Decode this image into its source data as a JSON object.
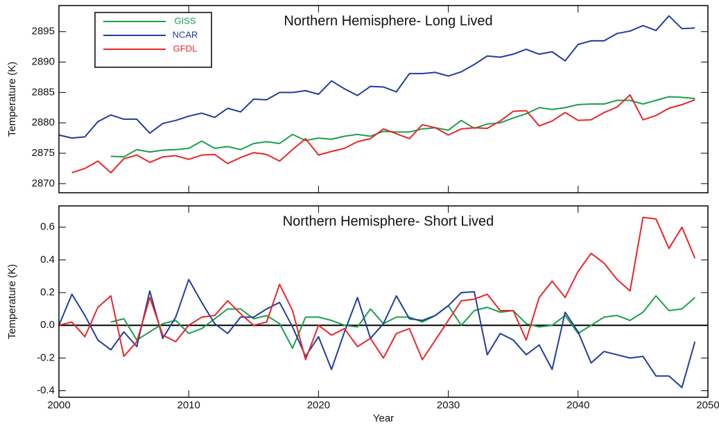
{
  "chart_data": [
    {
      "type": "line",
      "title": "Northern Hemisphere- Long Lived",
      "ylabel": "Temperature (K)",
      "x": [
        2000,
        2001,
        2002,
        2003,
        2004,
        2005,
        2006,
        2007,
        2008,
        2009,
        2010,
        2011,
        2012,
        2013,
        2014,
        2015,
        2016,
        2017,
        2018,
        2019,
        2020,
        2021,
        2022,
        2023,
        2024,
        2025,
        2026,
        2027,
        2028,
        2029,
        2030,
        2031,
        2032,
        2033,
        2034,
        2035,
        2036,
        2037,
        2038,
        2039,
        2040,
        2041,
        2042,
        2043,
        2044,
        2045,
        2046,
        2047,
        2048,
        2049
      ],
      "xlim": [
        2000,
        2050
      ],
      "ylim": [
        2868.5,
        2899.3
      ],
      "yticks": [
        2870,
        2875,
        2880,
        2885,
        2890,
        2895
      ],
      "legend": "upper left",
      "series": [
        {
          "name": "GISS",
          "color": "#1aa04a",
          "values": [
            null,
            null,
            null,
            null,
            2874.5,
            2874.4,
            2875.6,
            2875.2,
            2875.5,
            2875.6,
            2875.8,
            2877.0,
            2875.8,
            2876.1,
            2875.6,
            2876.6,
            2876.9,
            2876.6,
            2878.1,
            2877.1,
            2877.5,
            2877.3,
            2877.8,
            2878.1,
            2877.8,
            2878.6,
            2878.5,
            2878.5,
            2879.0,
            2879.2,
            2878.8,
            2880.4,
            2879.1,
            2879.8,
            2880.0,
            2880.8,
            2881.5,
            2882.5,
            2882.2,
            2882.5,
            2883.0,
            2883.1,
            2883.1,
            2883.7,
            2883.7,
            2883.1,
            2883.7,
            2884.3,
            2884.2,
            2884.0
          ]
        },
        {
          "name": "NCAR",
          "color": "#1f3e9b",
          "values": [
            2878.0,
            2877.5,
            2877.7,
            2880.2,
            2881.3,
            2880.6,
            2880.6,
            2878.3,
            2879.9,
            2880.4,
            2881.1,
            2881.6,
            2880.9,
            2882.4,
            2881.8,
            2883.9,
            2883.8,
            2885.0,
            2885.0,
            2885.3,
            2884.7,
            2886.9,
            2885.6,
            2884.5,
            2886.0,
            2885.9,
            2885.1,
            2888.1,
            2888.1,
            2888.3,
            2887.7,
            2888.4,
            2889.6,
            2891.0,
            2890.8,
            2891.3,
            2892.1,
            2891.3,
            2891.7,
            2890.2,
            2892.9,
            2893.5,
            2893.5,
            2894.7,
            2895.1,
            2896.0,
            2895.2,
            2897.6,
            2895.5,
            2895.6
          ]
        },
        {
          "name": "GFDL",
          "color": "#e8262a",
          "values": [
            null,
            2871.8,
            2872.5,
            2873.7,
            2871.8,
            2874.1,
            2874.7,
            2873.5,
            2874.4,
            2874.6,
            2874.0,
            2874.7,
            2874.8,
            2873.3,
            2874.3,
            2875.1,
            2874.8,
            2873.7,
            2875.6,
            2877.4,
            2874.7,
            2875.3,
            2875.8,
            2876.9,
            2877.4,
            2879.0,
            2878.2,
            2877.4,
            2879.7,
            2879.2,
            2878.0,
            2879.0,
            2879.2,
            2879.1,
            2880.3,
            2881.9,
            2882.0,
            2879.5,
            2880.3,
            2881.7,
            2880.4,
            2880.5,
            2881.7,
            2882.6,
            2884.6,
            2880.5,
            2881.2,
            2882.4,
            2883.0,
            2883.8
          ]
        }
      ]
    },
    {
      "type": "line",
      "title": "Northern Hemisphere- Short Lived",
      "ylabel": "Temperature (K)",
      "xlabel": "Year",
      "x": [
        2000,
        2001,
        2002,
        2003,
        2004,
        2005,
        2006,
        2007,
        2008,
        2009,
        2010,
        2011,
        2012,
        2013,
        2014,
        2015,
        2016,
        2017,
        2018,
        2019,
        2020,
        2021,
        2022,
        2023,
        2024,
        2025,
        2026,
        2027,
        2028,
        2029,
        2030,
        2031,
        2032,
        2033,
        2034,
        2035,
        2036,
        2037,
        2038,
        2039,
        2040,
        2041,
        2042,
        2043,
        2044,
        2045,
        2046,
        2047,
        2048,
        2049
      ],
      "xlim": [
        2000,
        2050
      ],
      "xticks": [
        2000,
        2010,
        2020,
        2030,
        2040,
        2050
      ],
      "ylim": [
        -0.44,
        0.73
      ],
      "yticks": [
        -0.4,
        -0.2,
        {
          "value": 0,
          "label": "0.0"
        },
        0.2,
        0.4,
        0.6
      ],
      "reference_line": 0,
      "series": [
        {
          "name": "GISS",
          "color": "#1aa04a",
          "values": [
            null,
            null,
            null,
            null,
            0.02,
            0.04,
            -0.09,
            -0.04,
            0.01,
            0.03,
            -0.05,
            -0.02,
            0.04,
            0.1,
            0.1,
            0.04,
            0.06,
            0.01,
            -0.14,
            0.05,
            0.05,
            0.03,
            0.0,
            -0.01,
            0.1,
            0.01,
            0.05,
            0.05,
            0.02,
            0.06,
            0.12,
            0.0,
            0.09,
            0.11,
            0.08,
            0.09,
            0.01,
            -0.01,
            0.0,
            0.06,
            -0.05,
            0.0,
            0.05,
            0.06,
            0.03,
            0.08,
            0.18,
            0.09,
            0.1,
            0.17
          ]
        },
        {
          "name": "NCAR",
          "color": "#1f3e9b",
          "values": [
            0.0,
            0.19,
            0.06,
            -0.09,
            -0.15,
            -0.04,
            -0.13,
            0.21,
            -0.08,
            0.05,
            0.28,
            0.14,
            0.01,
            -0.05,
            0.05,
            0.05,
            0.1,
            0.14,
            -0.01,
            -0.19,
            -0.07,
            -0.27,
            -0.04,
            0.17,
            -0.08,
            0.01,
            0.18,
            0.04,
            0.03,
            0.06,
            0.12,
            0.2,
            0.205,
            -0.18,
            -0.05,
            -0.09,
            -0.18,
            -0.12,
            -0.27,
            0.08,
            -0.04,
            -0.23,
            -0.16,
            -0.18,
            -0.2,
            -0.19,
            -0.31,
            -0.31,
            -0.38,
            -0.1
          ]
        },
        {
          "name": "GFDL",
          "color": "#e8262a",
          "values": [
            0.0,
            0.02,
            -0.07,
            0.11,
            0.18,
            -0.19,
            -0.1,
            0.17,
            -0.06,
            -0.1,
            0.0,
            0.05,
            0.06,
            0.15,
            0.07,
            0.0,
            0.02,
            0.25,
            0.09,
            -0.21,
            0.0,
            -0.06,
            -0.02,
            -0.13,
            -0.08,
            -0.2,
            -0.05,
            -0.02,
            -0.21,
            -0.09,
            0.03,
            0.15,
            0.16,
            0.19,
            0.09,
            0.09,
            -0.09,
            0.17,
            0.27,
            0.17,
            0.33,
            0.44,
            0.38,
            0.28,
            0.21,
            0.66,
            0.65,
            0.47,
            0.6,
            0.41
          ]
        }
      ]
    }
  ]
}
